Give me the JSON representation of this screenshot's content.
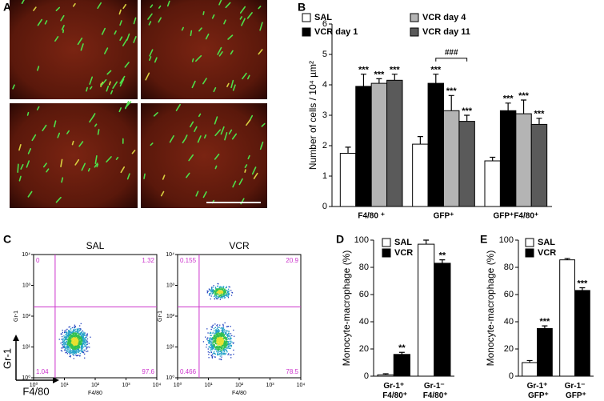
{
  "panel_labels": [
    "A",
    "B",
    "C",
    "D",
    "E"
  ],
  "flow_axes": {
    "y_label": "Gr-1",
    "x_label": "F4/80"
  },
  "chart_data": [
    {
      "type": "bar",
      "ylabel": "Number of cells / 10⁴ µm²",
      "categories": [
        "F4/80 ⁺",
        "GFP⁺",
        "GFP⁺F4/80⁺"
      ],
      "series": [
        {
          "name": "SAL",
          "color": "#ffffff",
          "values": [
            1.75,
            2.05,
            1.5
          ],
          "errors": [
            0.2,
            0.25,
            0.12
          ]
        },
        {
          "name": "VCR day 1",
          "color": "#000000",
          "values": [
            3.95,
            4.05,
            3.15
          ],
          "errors": [
            0.4,
            0.3,
            0.25
          ],
          "significance": [
            "***",
            "***",
            "***"
          ]
        },
        {
          "name": "VCR day 4",
          "color": "#b4b4b4",
          "values": [
            4.05,
            3.15,
            3.05
          ],
          "errors": [
            0.15,
            0.5,
            0.45
          ],
          "significance": [
            "***",
            "***",
            "***"
          ]
        },
        {
          "name": "VCR day 11",
          "color": "#5a5a5a",
          "values": [
            4.15,
            2.8,
            2.7
          ],
          "errors": [
            0.2,
            0.2,
            0.2
          ],
          "significance": [
            "***",
            "***",
            "***"
          ]
        }
      ],
      "bracket_label": "###",
      "ylim": [
        0,
        6
      ],
      "yticks": [
        0,
        1,
        2,
        3,
        4,
        5,
        6
      ]
    },
    {
      "type": "scatter",
      "title": "SAL",
      "xlabel": "F4/80",
      "ylabel": "Gr-1",
      "log": true,
      "xlim": [
        1,
        10000
      ],
      "ylim": [
        1,
        10000
      ],
      "xticks": [
        {
          "value": 1,
          "label": "10⁰"
        },
        {
          "value": 10,
          "label": "10¹"
        },
        {
          "value": 100,
          "label": "10²"
        },
        {
          "value": 1000,
          "label": "10³"
        },
        {
          "value": 10000,
          "label": "10⁴"
        }
      ],
      "yticks": [
        {
          "value": 1,
          "label": "10⁰"
        },
        {
          "value": 10,
          "label": "10¹"
        },
        {
          "value": 100,
          "label": "10²"
        },
        {
          "value": 1000,
          "label": "10³"
        },
        {
          "value": 10000,
          "label": "10⁴"
        }
      ],
      "gate_x": 5,
      "gate_y": 200,
      "gate_color": "#cc33cc",
      "quadrants": [
        0,
        1.32,
        1.04,
        97.6
      ]
    },
    {
      "type": "scatter",
      "title": "VCR",
      "xlabel": "F4/80",
      "ylabel": "Gr-1",
      "log": true,
      "xlim": [
        1,
        10000
      ],
      "ylim": [
        1,
        10000
      ],
      "xticks": [
        {
          "value": 1,
          "label": "10⁰"
        },
        {
          "value": 10,
          "label": "10¹"
        },
        {
          "value": 100,
          "label": "10²"
        },
        {
          "value": 1000,
          "label": "10³"
        },
        {
          "value": 10000,
          "label": "10⁴"
        }
      ],
      "yticks": [
        {
          "value": 1,
          "label": "10⁰"
        },
        {
          "value": 10,
          "label": "10¹"
        },
        {
          "value": 100,
          "label": "10²"
        },
        {
          "value": 1000,
          "label": "10³"
        },
        {
          "value": 10000,
          "label": "10⁴"
        }
      ],
      "gate_x": 5,
      "gate_y": 200,
      "gate_color": "#cc33cc",
      "quadrants": [
        0.155,
        20.9,
        0.466,
        78.5
      ]
    },
    {
      "type": "bar",
      "ylabel": "Monocyte-macrophage (%)",
      "categories": [
        "Gr-1⁺ F4/80⁺",
        "Gr-1⁻ F4/80⁺"
      ],
      "series": [
        {
          "name": "SAL",
          "color": "#ffffff",
          "values": [
            1,
            97
          ],
          "errors": [
            0.8,
            3
          ]
        },
        {
          "name": "VCR",
          "color": "#000000",
          "values": [
            16,
            83
          ],
          "errors": [
            1.5,
            2.5
          ],
          "significance": [
            "**",
            "**"
          ]
        }
      ],
      "ylim": [
        0,
        100
      ],
      "yticks": [
        0,
        20,
        40,
        60,
        80,
        100
      ]
    },
    {
      "type": "bar",
      "ylabel": "Monocyte-macrophage (%)",
      "categories": [
        "Gr-1⁺ GFP⁺",
        "Gr-1⁻ GFP⁺"
      ],
      "series": [
        {
          "name": "SAL",
          "color": "#ffffff",
          "values": [
            10,
            85.5
          ],
          "errors": [
            1.5,
            1
          ]
        },
        {
          "name": "VCR",
          "color": "#000000",
          "values": [
            35,
            63
          ],
          "errors": [
            2,
            2
          ],
          "significance": [
            "***",
            "***"
          ]
        }
      ],
      "ylim": [
        0,
        100
      ],
      "yticks": [
        0,
        20,
        40,
        60,
        80,
        100
      ]
    }
  ]
}
